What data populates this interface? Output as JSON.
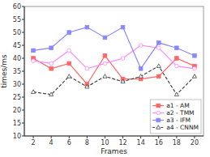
{
  "chart_data": {
    "type": "line",
    "x": [
      2,
      4,
      6,
      8,
      10,
      12,
      14,
      16,
      18,
      20
    ],
    "series": [
      {
        "name": "a1 - AM",
        "color": "#ff6666",
        "marker": "square",
        "line_style": "solid",
        "values": [
          40,
          36,
          38,
          30,
          41,
          32,
          32,
          33,
          40,
          37
        ]
      },
      {
        "name": "a2 - TMM",
        "color": "#ff88ff",
        "marker": "circle-open",
        "line_style": "solid",
        "values": [
          39,
          38,
          43,
          36,
          38,
          40,
          45,
          44,
          37,
          36
        ]
      },
      {
        "name": "a3 - IFM",
        "color": "#8888ff",
        "marker": "square",
        "line_style": "solid",
        "values": [
          43,
          44,
          50,
          52,
          48,
          52,
          36,
          46,
          44,
          41
        ]
      },
      {
        "name": "a4 - CNNM",
        "color": "#444444",
        "marker": "triangle-open",
        "line_style": "dashed",
        "values": [
          27,
          26,
          33,
          29,
          33,
          31,
          33,
          37,
          26,
          33
        ]
      }
    ],
    "xlabel": "Frames",
    "ylabel": "times/ms",
    "xlim": [
      1,
      21
    ],
    "ylim": [
      10,
      60
    ],
    "xticks": [
      2,
      4,
      6,
      8,
      10,
      12,
      14,
      16,
      18,
      20
    ],
    "yticks": [
      10,
      15,
      20,
      25,
      30,
      35,
      40,
      45,
      50,
      55,
      60
    ],
    "grid": false,
    "legend": "lower right"
  }
}
